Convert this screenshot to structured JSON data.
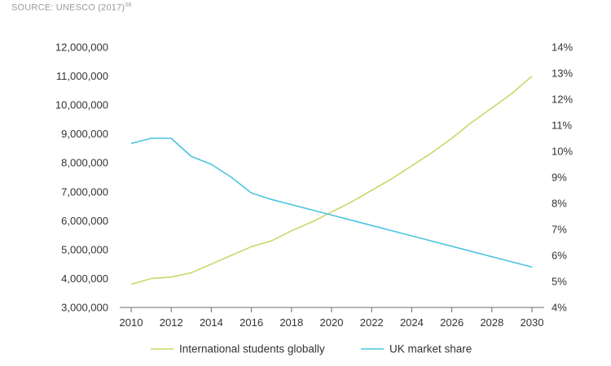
{
  "source": {
    "label": "SOURCE: UNESCO (2017)",
    "footnote": "38"
  },
  "chart_data": {
    "type": "line",
    "x": [
      2010,
      2011,
      2012,
      2013,
      2014,
      2015,
      2016,
      2017,
      2018,
      2019,
      2020,
      2021,
      2022,
      2023,
      2024,
      2025,
      2026,
      2027,
      2028,
      2029,
      2030
    ],
    "xticks": [
      "2010",
      "2012",
      "2014",
      "2016",
      "2018",
      "2020",
      "2022",
      "2024",
      "2026",
      "2028",
      "2030"
    ],
    "xlim": [
      2010,
      2030
    ],
    "y_left": {
      "lim": [
        3000000,
        12000000
      ],
      "ticks": [
        "3,000,000",
        "4,000,000",
        "5,000,000",
        "6,000,000",
        "7,000,000",
        "8,000,000",
        "9,000,000",
        "10,000,000",
        "11,000,000",
        "12,000,000"
      ]
    },
    "y_right": {
      "lim": [
        4,
        14
      ],
      "ticks": [
        "4%",
        "5%",
        "6%",
        "7%",
        "8%",
        "9%",
        "10%",
        "11%",
        "12%",
        "13%",
        "14%"
      ]
    },
    "series": [
      {
        "name": "International students globally",
        "axis": "left",
        "color": "#c8d86a",
        "values": [
          3800000,
          4000000,
          4050000,
          4200000,
          4500000,
          4800000,
          5100000,
          5300000,
          5650000,
          5950000,
          6300000,
          6650000,
          7050000,
          7450000,
          7900000,
          8350000,
          8850000,
          9400000,
          9900000,
          10400000,
          11000000
        ]
      },
      {
        "name": "UK market share",
        "axis": "right",
        "color": "#4cc3e0",
        "values": [
          10.3,
          10.5,
          10.5,
          9.8,
          9.5,
          9.0,
          8.4,
          8.15,
          7.95,
          7.75,
          7.55,
          7.35,
          7.15,
          6.95,
          6.75,
          6.55,
          6.35,
          6.15,
          5.95,
          5.75,
          5.55
        ]
      }
    ],
    "grid": false,
    "legend_position": "bottom"
  }
}
